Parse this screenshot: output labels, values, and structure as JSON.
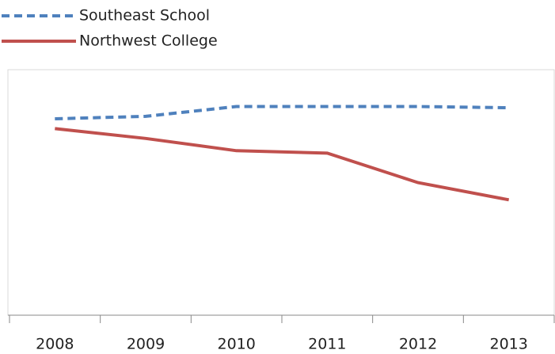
{
  "chart_data": {
    "type": "line",
    "categories": [
      "2008",
      "2009",
      "2010",
      "2011",
      "2012",
      "2013"
    ],
    "series": [
      {
        "name": "Southeast School",
        "color": "#4f81bd",
        "dashed": true,
        "values": [
          80,
          81,
          85,
          85,
          85,
          84.5
        ]
      },
      {
        "name": "Northwest College",
        "color": "#c0504d",
        "dashed": false,
        "values": [
          76,
          72,
          67,
          66,
          54,
          47
        ]
      }
    ],
    "ylim": [
      0,
      100
    ],
    "legend": "top-left"
  }
}
